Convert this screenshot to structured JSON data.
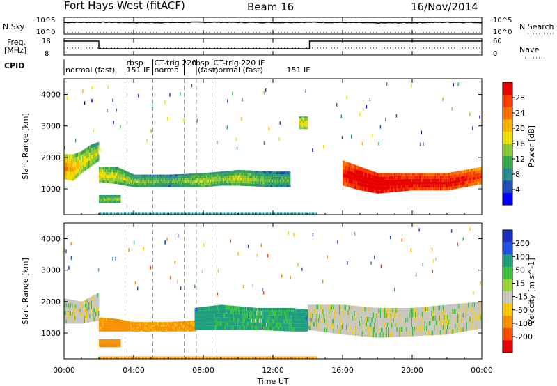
{
  "header": {
    "station": "Fort Hays West (fitACF)",
    "beam": "Beam 16",
    "date": "16/Nov/2014"
  },
  "top_panels": {
    "nsky_label": "N.Sky",
    "nsky_ticks": [
      "10^5",
      "10^0"
    ],
    "nsearch_label": "N.Search",
    "nsearch_ticks": [
      "10^5",
      "10^0"
    ],
    "freq_label_line1": "Freq.",
    "freq_label_line2": "[MHz]",
    "freq_ticks": [
      "18",
      "8"
    ],
    "nave_label": "Nave",
    "nave_ticks": [
      "60",
      "0"
    ],
    "cpid_label": "CPID"
  },
  "cpid_segments": [
    {
      "label": "normal (fast)",
      "start_hr": 0.0,
      "row": 1
    },
    {
      "label": "rbsp",
      "start_hr": 3.5,
      "row": 0
    },
    {
      "label": "151 IF",
      "start_hr": 3.5,
      "row": 1
    },
    {
      "label": "CT-trig 220",
      "start_hr": 5.1,
      "row": 0
    },
    {
      "label": "normal",
      "start_hr": 5.1,
      "row": 1
    },
    {
      "label": "rbsp",
      "start_hr": 7.3,
      "row": 0
    },
    {
      "label": "(fast)",
      "start_hr": 7.6,
      "row": 1
    },
    {
      "label": "CT-trig 220 IF",
      "start_hr": 8.5,
      "row": 0
    },
    {
      "label": "normal (fast)",
      "start_hr": 8.5,
      "row": 1
    },
    {
      "label": "151 IF",
      "start_hr": 12.7,
      "row": 1
    }
  ],
  "mode_boundaries_hr": [
    3.5,
    5.1,
    6.9,
    7.6,
    8.5
  ],
  "axes": {
    "x_label": "Time UT",
    "x_ticks": [
      "00:00",
      "04:00",
      "08:00",
      "12:00",
      "16:00",
      "20:00",
      "00:00"
    ],
    "y_label": "Slant Range [km]",
    "y_ticks": [
      "1000",
      "2000",
      "3000",
      "4000"
    ]
  },
  "colorbars": {
    "power": {
      "label": "Power [dB]",
      "ticks": [
        "4",
        "8",
        "12",
        "16",
        "20",
        "24",
        "28"
      ],
      "colors": [
        "#0000ff",
        "#1e50b4",
        "#2a8c8c",
        "#3aa84c",
        "#8cc83c",
        "#f0e000",
        "#f8b400",
        "#f87000",
        "#f83c00",
        "#e80000"
      ]
    },
    "velocity": {
      "label": "Velocity [m s^-1]",
      "ticks": [
        "200",
        "100",
        "50",
        "15",
        "-15",
        "-50",
        "-100",
        "-200"
      ],
      "colors": [
        "#1830c0",
        "#2050e0",
        "#1ea080",
        "#40c040",
        "#98d838",
        "#c8c8c0",
        "#f8c800",
        "#f89000",
        "#f85000",
        "#e80000"
      ]
    }
  },
  "chart_data": [
    {
      "type": "line",
      "title": "N.Sky / N.Search",
      "y_scale": "log",
      "ylim": [
        1,
        100000
      ],
      "series": [
        {
          "name": "N.Sky",
          "x_hr": [
            0,
            2,
            4,
            6,
            8,
            10,
            12,
            14,
            16,
            18,
            20,
            22,
            24
          ],
          "values": [
            5000,
            6000,
            4500,
            5000,
            6000,
            5500,
            5000,
            6000,
            5000,
            3500,
            4500,
            6000,
            5000
          ]
        },
        {
          "name": "N.Search",
          "x_hr": [
            0,
            24
          ],
          "values": [
            1,
            1
          ]
        }
      ]
    },
    {
      "type": "line",
      "title": "Freq. / Nave",
      "ylim": [
        8,
        18
      ],
      "series": [
        {
          "name": "Freq. [MHz]",
          "x_hr": [
            0,
            2.0,
            2.0,
            14.1,
            14.1,
            24
          ],
          "values": [
            17,
            17,
            11.5,
            11.5,
            17,
            17
          ]
        },
        {
          "name": "Nave",
          "x_hr": [
            0,
            24
          ],
          "values": [
            12,
            12
          ]
        }
      ]
    },
    {
      "type": "heatmap",
      "title": "Power",
      "x_range_hr": [
        0,
        24
      ],
      "ylim_km": [
        180,
        4500
      ],
      "bands": [
        {
          "t": [
            0.0,
            0.5,
            1.0,
            1.5,
            2.0
          ],
          "lower_km": [
            1300,
            1250,
            1500,
            1700,
            1900
          ],
          "upper_km": [
            2100,
            2100,
            2200,
            2400,
            2500
          ],
          "power_db": [
            18,
            16,
            14,
            12,
            12
          ]
        },
        {
          "t": [
            2.0,
            3.0,
            4.0,
            6.0,
            8.0,
            9.0,
            10.0,
            12.0,
            13.0
          ],
          "lower_km": [
            1200,
            1150,
            1050,
            1050,
            1050,
            1100,
            1100,
            1050,
            1050
          ],
          "upper_km": [
            1700,
            1700,
            1450,
            1450,
            1500,
            1550,
            1600,
            1550,
            1550
          ],
          "power_db": [
            14,
            12,
            10,
            8,
            12,
            10,
            12,
            8,
            8
          ]
        },
        {
          "t": [
            16.0,
            17.0,
            18.0,
            20.0,
            22.0,
            24.0
          ],
          "lower_km": [
            1100,
            950,
            850,
            950,
            950,
            1150
          ],
          "upper_km": [
            1900,
            1700,
            1500,
            1500,
            1500,
            1700
          ],
          "power_db": [
            24,
            28,
            28,
            26,
            26,
            22
          ]
        },
        {
          "t": [
            2.0,
            3.2
          ],
          "lower_km": [
            550,
            550
          ],
          "upper_km": [
            800,
            800
          ],
          "power_db": [
            10,
            10
          ]
        },
        {
          "t": [
            13.5,
            14.0
          ],
          "lower_km": [
            2900,
            2900
          ],
          "upper_km": [
            3300,
            3300
          ],
          "power_db": [
            14,
            14
          ]
        }
      ]
    },
    {
      "type": "heatmap",
      "title": "Velocity",
      "x_range_hr": [
        0,
        24
      ],
      "ylim_km": [
        180,
        4500
      ],
      "bands": [
        {
          "t": [
            0.0,
            1.0,
            2.0
          ],
          "lower_km": [
            1300,
            1300,
            1400
          ],
          "upper_km": [
            2100,
            2000,
            2300
          ],
          "velocity": [
            0,
            0,
            0
          ]
        },
        {
          "t": [
            2.0,
            3.0,
            4.0,
            6.0,
            7.5
          ],
          "lower_km": [
            1050,
            1050,
            1050,
            1050,
            1050
          ],
          "upper_km": [
            1500,
            1450,
            1350,
            1350,
            1400
          ],
          "velocity": [
            -60,
            -80,
            -60,
            -60,
            -60
          ]
        },
        {
          "t": [
            7.5,
            9.0,
            11.0,
            13.0,
            14.0
          ],
          "lower_km": [
            1100,
            1100,
            1100,
            1050,
            1050
          ],
          "upper_km": [
            1800,
            1900,
            1800,
            1800,
            1750
          ],
          "velocity": [
            60,
            40,
            30,
            40,
            60
          ]
        },
        {
          "t": [
            14.0,
            16.0,
            18.0,
            20.0,
            22.0,
            24.0
          ],
          "lower_km": [
            1100,
            950,
            850,
            900,
            950,
            1150
          ],
          "upper_km": [
            1900,
            1900,
            1800,
            1800,
            1900,
            2000
          ],
          "velocity": [
            0,
            0,
            0,
            0,
            0,
            0
          ]
        },
        {
          "t": [
            2.0,
            3.2
          ],
          "lower_km": [
            550,
            550
          ],
          "upper_km": [
            800,
            800
          ],
          "velocity": [
            -70,
            -70
          ]
        }
      ]
    }
  ]
}
